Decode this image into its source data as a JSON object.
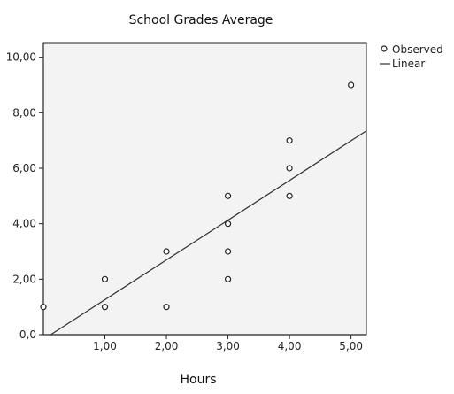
{
  "chart_data": {
    "type": "scatter",
    "title": "School Grades Average",
    "xlabel": "Hours",
    "ylabel": "",
    "xlim": [
      0,
      5.25
    ],
    "ylim": [
      0,
      10.5
    ],
    "x_ticks": [
      1,
      2,
      3,
      4,
      5
    ],
    "x_tick_labels": [
      "1,00",
      "2,00",
      "3,00",
      "4,00",
      "5,00"
    ],
    "y_ticks": [
      0,
      2,
      4,
      6,
      8,
      10
    ],
    "y_tick_labels": [
      "0,0",
      "2,00",
      "4,00",
      "6,00",
      "8,00",
      "10,00"
    ],
    "grid": false,
    "legend_position": "top-right outside",
    "series": [
      {
        "name": "Observed",
        "kind": "scatter",
        "marker": "open-circle",
        "x": [
          0,
          1,
          1,
          2,
          2,
          3,
          3,
          3,
          3,
          4,
          4,
          4,
          5
        ],
        "y": [
          1,
          1,
          2,
          1,
          3,
          2,
          3,
          4,
          5,
          5,
          6,
          7,
          9
        ]
      },
      {
        "name": "Linear",
        "kind": "line",
        "x": [
          0.12,
          5.25
        ],
        "y": [
          0,
          7.35
        ]
      }
    ],
    "colors": {
      "plot_background": "#f3f3f3",
      "axis": "#222222",
      "marker": "#222222",
      "line": "#333333"
    }
  }
}
